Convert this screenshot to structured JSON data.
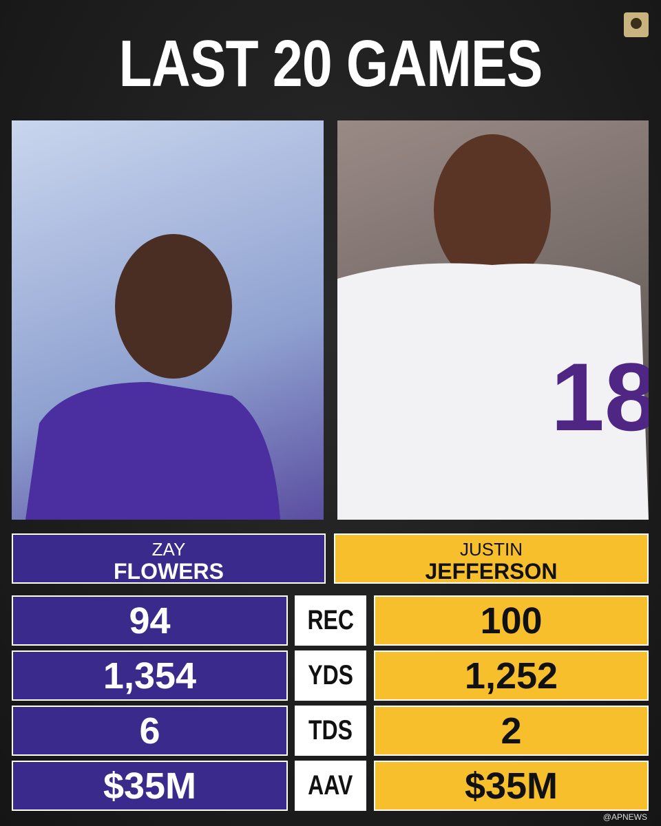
{
  "header": {
    "title": "LAST 20 GAMES"
  },
  "players": [
    {
      "first": "ZAY",
      "last": "FLOWERS"
    },
    {
      "first": "JUSTIN",
      "last": "JEFFERSON"
    }
  ],
  "table": {
    "rows": [
      [
        "REC",
        "94",
        "100"
      ],
      [
        "YDS",
        "1,354",
        "1,252"
      ],
      [
        "TDS",
        "6",
        "2"
      ],
      [
        "AAV",
        "$35M",
        "$35M"
      ]
    ]
  },
  "footer": {
    "credit": "@APNEWS"
  }
}
